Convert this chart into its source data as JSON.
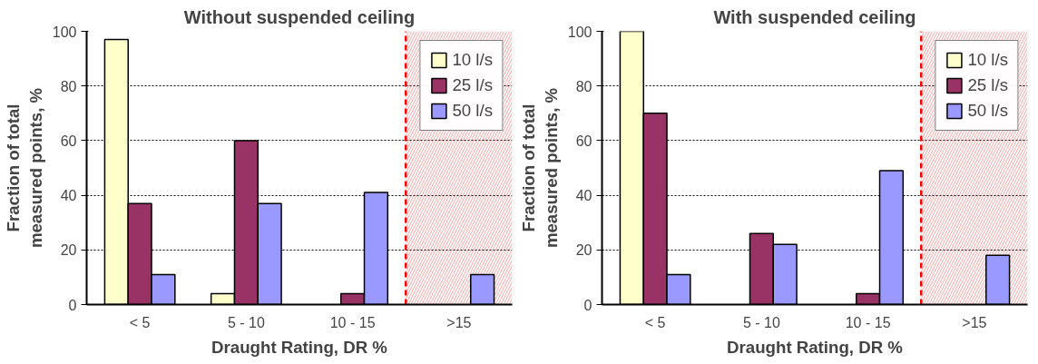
{
  "chart_data": [
    {
      "type": "bar",
      "title": "Without suspended ceiling",
      "xlabel": "Draught Rating, DR %",
      "ylabel": "Fraction of total measured points, %",
      "categories": [
        "< 5",
        "5 - 10",
        "10 - 15",
        ">15"
      ],
      "ylim": [
        0,
        100
      ],
      "yticks": [
        0,
        20,
        40,
        60,
        80,
        100
      ],
      "grid": "y",
      "legend": "top right",
      "series": [
        {
          "name": "10 l/s",
          "color": "#ffffcc",
          "values": [
            97,
            4,
            null,
            null
          ]
        },
        {
          "name": "25 l/s",
          "color": "#993366",
          "values": [
            37,
            60,
            4,
            null
          ]
        },
        {
          "name": "50 l/s",
          "color": "#9999ff",
          "values": [
            11,
            37,
            41,
            11
          ]
        }
      ],
      "bands": [
        {
          "axis": "x",
          "from": ">15",
          "to": ">15",
          "color": "#ff0000"
        }
      ],
      "ref_lines": [
        {
          "axis": "x",
          "value": ">15",
          "color": "#ff0000",
          "line_style": "dashed"
        }
      ]
    },
    {
      "type": "bar",
      "title": "With suspended ceiling",
      "xlabel": "Draught Rating, DR %",
      "ylabel": "Fraction of total measured points, %",
      "categories": [
        "< 5",
        "5 - 10",
        "10 - 15",
        ">15"
      ],
      "ylim": [
        0,
        100
      ],
      "yticks": [
        0,
        20,
        40,
        60,
        80,
        100
      ],
      "grid": "y",
      "legend": "top right",
      "series": [
        {
          "name": "10 l/s",
          "color": "#ffffcc",
          "values": [
            100,
            null,
            null,
            null
          ]
        },
        {
          "name": "25 l/s",
          "color": "#993366",
          "values": [
            70,
            26,
            4,
            null
          ]
        },
        {
          "name": "50 l/s",
          "color": "#9999ff",
          "values": [
            11,
            22,
            49,
            18
          ]
        }
      ],
      "bands": [
        {
          "axis": "x",
          "from": ">15",
          "to": ">15",
          "color": "#ff0000"
        }
      ],
      "ref_lines": [
        {
          "axis": "x",
          "value": ">15",
          "color": "#ff0000",
          "line_style": "dashed"
        }
      ]
    }
  ]
}
